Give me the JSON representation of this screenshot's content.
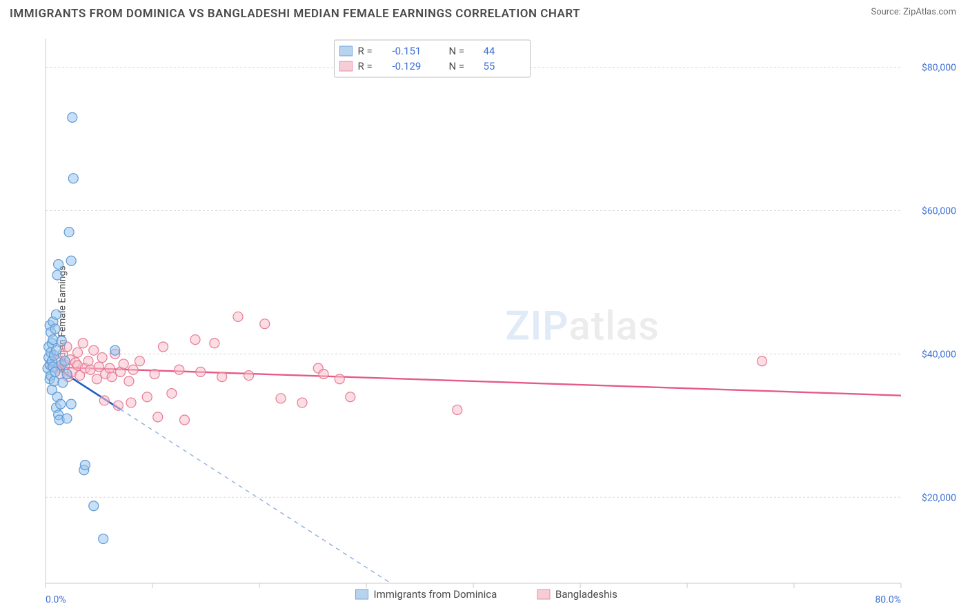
{
  "header": {
    "title": "IMMIGRANTS FROM DOMINICA VS BANGLADESHI MEDIAN FEMALE EARNINGS CORRELATION CHART",
    "source_label": "Source: ",
    "source_value": "ZipAtlas.com"
  },
  "chart": {
    "type": "scatter",
    "ylabel": "Median Female Earnings",
    "background_color": "#ffffff",
    "grid_color": "#d8d8d8",
    "axis_color": "#c9c9c9",
    "xlim": [
      0,
      80
    ],
    "ylim": [
      8000,
      84000
    ],
    "xtick_positions": [
      0,
      10,
      20,
      30,
      40,
      50,
      60,
      70,
      80
    ],
    "xtick_labels_shown": {
      "0": "0.0%",
      "80": "80.0%"
    },
    "xtick_label_color": "#3b6fd6",
    "ytick_positions": [
      20000,
      40000,
      60000,
      80000
    ],
    "ytick_labels": [
      "$20,000",
      "$40,000",
      "$60,000",
      "$80,000"
    ],
    "ytick_label_color": "#3b6fd6",
    "marker_radius": 7,
    "watermark": {
      "text_zip": "ZIP",
      "text_atlas": "atlas",
      "color_zip": "#a8c6ea",
      "color_atlas": "#c8c8c8",
      "fontsize": 58
    },
    "series": [
      {
        "name": "Immigrants from Dominica",
        "color_fill": "#9cc4ec",
        "color_stroke": "#5b9bd6",
        "R": "-0.151",
        "N": "44",
        "trend": {
          "solid_color": "#1f5fc4",
          "dash_color": "#8faedb",
          "x1": 0,
          "y1": 39000,
          "slope": -960
        },
        "points": [
          [
            0.2,
            38000
          ],
          [
            0.3,
            39500
          ],
          [
            0.3,
            41000
          ],
          [
            0.4,
            38500
          ],
          [
            0.4,
            44000
          ],
          [
            0.4,
            36500
          ],
          [
            0.5,
            40200
          ],
          [
            0.5,
            43000
          ],
          [
            0.5,
            37000
          ],
          [
            0.6,
            39000
          ],
          [
            0.6,
            41500
          ],
          [
            0.6,
            35000
          ],
          [
            0.7,
            38200
          ],
          [
            0.7,
            42000
          ],
          [
            0.7,
            44500
          ],
          [
            0.8,
            39800
          ],
          [
            0.8,
            36200
          ],
          [
            0.9,
            43500
          ],
          [
            0.9,
            37500
          ],
          [
            1.0,
            40500
          ],
          [
            1.0,
            45500
          ],
          [
            1.0,
            32500
          ],
          [
            1.1,
            34000
          ],
          [
            1.1,
            51000
          ],
          [
            1.2,
            52500
          ],
          [
            1.2,
            31500
          ],
          [
            1.3,
            30800
          ],
          [
            1.4,
            33000
          ],
          [
            1.5,
            38500
          ],
          [
            1.5,
            41800
          ],
          [
            1.6,
            36000
          ],
          [
            1.8,
            39000
          ],
          [
            2.0,
            37200
          ],
          [
            2.0,
            31000
          ],
          [
            2.2,
            57000
          ],
          [
            2.4,
            53000
          ],
          [
            2.5,
            73000
          ],
          [
            2.6,
            64500
          ],
          [
            3.6,
            23800
          ],
          [
            3.7,
            24500
          ],
          [
            4.5,
            18800
          ],
          [
            5.4,
            14200
          ],
          [
            6.5,
            40500
          ],
          [
            2.4,
            33000
          ]
        ]
      },
      {
        "name": "Bangladeshis",
        "color_fill": "#f7c1cc",
        "color_stroke": "#e77a94",
        "R": "-0.129",
        "N": "55",
        "trend": {
          "color": "#e55a86",
          "x1": 0,
          "y1": 38200,
          "x2": 80,
          "y2": 34200
        },
        "points": [
          [
            1.0,
            38000
          ],
          [
            1.2,
            39000
          ],
          [
            1.4,
            37200
          ],
          [
            1.6,
            40000
          ],
          [
            1.8,
            38500
          ],
          [
            2.0,
            41000
          ],
          [
            2.1,
            36800
          ],
          [
            2.3,
            39200
          ],
          [
            2.5,
            37500
          ],
          [
            2.8,
            38800
          ],
          [
            3.0,
            40200
          ],
          [
            3.0,
            38400
          ],
          [
            3.2,
            37000
          ],
          [
            3.5,
            41500
          ],
          [
            3.7,
            38000
          ],
          [
            4.0,
            39000
          ],
          [
            4.2,
            37800
          ],
          [
            4.5,
            40500
          ],
          [
            4.8,
            36500
          ],
          [
            5.0,
            38200
          ],
          [
            5.3,
            39500
          ],
          [
            5.6,
            37200
          ],
          [
            6.0,
            38000
          ],
          [
            6.2,
            36800
          ],
          [
            6.5,
            40000
          ],
          [
            7.0,
            37500
          ],
          [
            7.3,
            38600
          ],
          [
            7.8,
            36200
          ],
          [
            8.2,
            37800
          ],
          [
            8.8,
            39000
          ],
          [
            5.5,
            33500
          ],
          [
            6.8,
            32800
          ],
          [
            8.0,
            33200
          ],
          [
            9.5,
            34000
          ],
          [
            10.2,
            37200
          ],
          [
            11.0,
            41000
          ],
          [
            11.8,
            34500
          ],
          [
            10.5,
            31200
          ],
          [
            12.5,
            37800
          ],
          [
            13.0,
            30800
          ],
          [
            14.0,
            42000
          ],
          [
            14.5,
            37500
          ],
          [
            15.8,
            41500
          ],
          [
            16.5,
            36800
          ],
          [
            18.0,
            45200
          ],
          [
            19.0,
            37000
          ],
          [
            20.5,
            44200
          ],
          [
            22.0,
            33800
          ],
          [
            24.0,
            33200
          ],
          [
            25.5,
            38000
          ],
          [
            26.0,
            37200
          ],
          [
            27.5,
            36500
          ],
          [
            28.5,
            34000
          ],
          [
            38.5,
            32200
          ],
          [
            67.0,
            39000
          ]
        ]
      }
    ]
  },
  "top_legend": {
    "R_label": "R  =",
    "N_label": "N  =",
    "border_color": "#bfbfbf"
  },
  "bottom_legend": {
    "series1_label": "Immigrants from Dominica",
    "series2_label": "Bangladeshis"
  }
}
